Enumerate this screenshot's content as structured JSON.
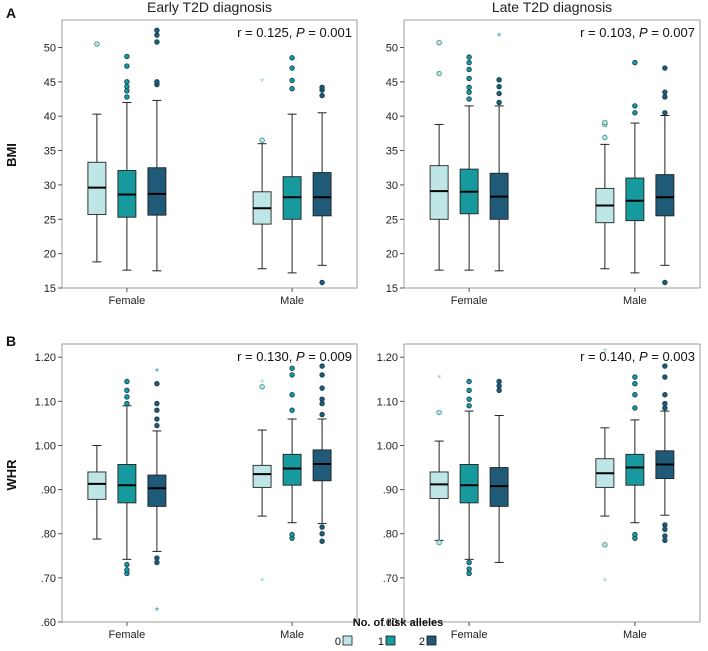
{
  "figure": {
    "legend_title": "No. of risk alleles",
    "legend_items": [
      {
        "label": "0",
        "color": "#bfe6e6"
      },
      {
        "label": "1",
        "color": "#179a9e"
      },
      {
        "label": "2",
        "color": "#1f5b78"
      }
    ],
    "frame_color": "#9c9c9c"
  },
  "chart_data": [
    {
      "type": "boxplot",
      "panel": "A",
      "title": "Early T2D diagnosis",
      "ylabel": "BMI",
      "annotation": {
        "r": "r = 0.125, ",
        "p_label": "P",
        "p_value": " = 0.001"
      },
      "ylim": [
        15,
        54
      ],
      "yticks": [
        15,
        20,
        25,
        30,
        35,
        40,
        45,
        50
      ],
      "ytick_labels": [
        "15",
        "20",
        "25",
        "30",
        "35",
        "40",
        "45",
        "50"
      ],
      "categories": [
        "Female",
        "Male"
      ],
      "groups": [
        {
          "category": "Female",
          "boxes": [
            {
              "alleles": 0,
              "min": 18.8,
              "q1": 25.7,
              "median": 29.6,
              "q3": 33.3,
              "max": 40.3,
              "outliers": [
                50.5
              ]
            },
            {
              "alleles": 1,
              "min": 17.6,
              "q1": 25.3,
              "median": 28.6,
              "q3": 32.1,
              "max": 42.0,
              "outliers": [
                42.8,
                43.7,
                44.3,
                45.0,
                47.3,
                48.7
              ]
            },
            {
              "alleles": 2,
              "min": 17.5,
              "q1": 25.6,
              "median": 28.7,
              "q3": 32.5,
              "max": 42.3,
              "outliers": [
                44.6,
                45.0,
                50.8,
                51.8,
                52.5
              ]
            }
          ]
        },
        {
          "category": "Male",
          "boxes": [
            {
              "alleles": 0,
              "min": 17.8,
              "q1": 24.3,
              "median": 26.6,
              "q3": 29.0,
              "max": 36.0,
              "outliers": [
                36.5
              ],
              "extremes": [
                45.2
              ]
            },
            {
              "alleles": 1,
              "min": 17.2,
              "q1": 25.0,
              "median": 28.2,
              "q3": 31.2,
              "max": 40.3,
              "outliers": [
                44.0,
                45.2,
                47.0,
                48.5
              ]
            },
            {
              "alleles": 2,
              "min": 18.3,
              "q1": 25.5,
              "median": 28.2,
              "q3": 31.8,
              "max": 40.5,
              "outliers": [
                15.8,
                43.0,
                43.8,
                44.2
              ]
            }
          ]
        }
      ]
    },
    {
      "type": "boxplot",
      "panel": "",
      "title": "Late T2D diagnosis",
      "ylabel": "",
      "annotation": {
        "r": "r = 0.103, ",
        "p_label": "P",
        "p_value": " = 0.007"
      },
      "ylim": [
        15,
        54
      ],
      "yticks": [
        15,
        20,
        25,
        30,
        35,
        40,
        45,
        50
      ],
      "ytick_labels": [
        "15",
        "20",
        "25",
        "30",
        "35",
        "40",
        "45",
        "50"
      ],
      "categories": [
        "Female",
        "Male"
      ],
      "groups": [
        {
          "category": "Female",
          "boxes": [
            {
              "alleles": 0,
              "min": 17.6,
              "q1": 25.0,
              "median": 29.1,
              "q3": 32.8,
              "max": 38.8,
              "outliers": [
                46.2,
                50.7
              ]
            },
            {
              "alleles": 1,
              "min": 17.6,
              "q1": 25.8,
              "median": 29.0,
              "q3": 32.3,
              "max": 41.5,
              "outliers": [
                42.5,
                43.5,
                44.2,
                45.5,
                46.8,
                47.8,
                48.6
              ]
            },
            {
              "alleles": 2,
              "min": 17.5,
              "q1": 25.0,
              "median": 28.3,
              "q3": 31.7,
              "max": 41.5,
              "outliers": [
                42.0,
                43.3,
                44.3,
                45.3
              ],
              "extremes": [
                51.8
              ]
            }
          ]
        },
        {
          "category": "Male",
          "boxes": [
            {
              "alleles": 0,
              "min": 17.8,
              "q1": 24.5,
              "median": 27.0,
              "q3": 29.5,
              "max": 35.9,
              "outliers": [
                36.9,
                38.8,
                39.1
              ]
            },
            {
              "alleles": 1,
              "min": 17.2,
              "q1": 24.8,
              "median": 27.7,
              "q3": 31.0,
              "max": 39.0,
              "outliers": [
                40.5,
                41.5,
                47.8
              ]
            },
            {
              "alleles": 2,
              "min": 18.3,
              "q1": 25.5,
              "median": 28.2,
              "q3": 31.5,
              "max": 40.1,
              "outliers": [
                15.8,
                40.5,
                42.8,
                43.5,
                47.0
              ]
            }
          ]
        }
      ]
    },
    {
      "type": "boxplot",
      "panel": "B",
      "title": "",
      "ylabel": "WHR",
      "annotation": {
        "r": "r = 0.130, ",
        "p_label": "P",
        "p_value": " = 0.009"
      },
      "ylim": [
        0.6,
        1.23
      ],
      "yticks": [
        0.6,
        0.7,
        0.8,
        0.9,
        1.0,
        1.1,
        1.2
      ],
      "ytick_labels": [
        ".60",
        ".70",
        ".80",
        ".90",
        "1.00",
        "1.10",
        "1.20"
      ],
      "categories": [
        "Female",
        "Male"
      ],
      "groups": [
        {
          "category": "Female",
          "boxes": [
            {
              "alleles": 0,
              "min": 0.788,
              "q1": 0.878,
              "median": 0.913,
              "q3": 0.94,
              "max": 1.0,
              "outliers": []
            },
            {
              "alleles": 1,
              "min": 0.742,
              "q1": 0.87,
              "median": 0.91,
              "q3": 0.957,
              "max": 1.09,
              "outliers": [
                0.71,
                0.718,
                0.73,
                1.095,
                1.11,
                1.125,
                1.145
              ]
            },
            {
              "alleles": 2,
              "min": 0.76,
              "q1": 0.862,
              "median": 0.903,
              "q3": 0.933,
              "max": 1.033,
              "outliers": [
                0.735,
                0.745,
                1.045,
                1.06,
                1.08,
                1.095,
                1.14
              ],
              "extremes": [
                0.628,
                1.17
              ]
            }
          ]
        },
        {
          "category": "Male",
          "boxes": [
            {
              "alleles": 0,
              "min": 0.84,
              "q1": 0.905,
              "median": 0.935,
              "q3": 0.955,
              "max": 1.035,
              "outliers": [
                1.133
              ],
              "extremes": [
                0.695,
                1.145
              ]
            },
            {
              "alleles": 1,
              "min": 0.825,
              "q1": 0.91,
              "median": 0.948,
              "q3": 0.98,
              "max": 1.06,
              "outliers": [
                0.79,
                0.798,
                1.08,
                1.115,
                1.16,
                1.175
              ]
            },
            {
              "alleles": 2,
              "min": 0.823,
              "q1": 0.92,
              "median": 0.958,
              "q3": 0.99,
              "max": 1.06,
              "outliers": [
                0.783,
                0.8,
                0.815,
                1.07,
                1.095,
                1.105,
                1.13,
                1.16,
                1.18
              ]
            }
          ]
        }
      ]
    },
    {
      "type": "boxplot",
      "panel": "",
      "title": "",
      "ylabel": "",
      "annotation": {
        "r": "r = 0.140, ",
        "p_label": "P",
        "p_value": " = 0.003"
      },
      "ylim": [
        0.6,
        1.23
      ],
      "yticks": [
        0.6,
        0.7,
        0.8,
        0.9,
        1.0,
        1.1,
        1.2
      ],
      "ytick_labels": [
        ".60",
        ".70",
        ".80",
        ".90",
        "1.00",
        "1.10",
        "1.20"
      ],
      "categories": [
        "Female",
        "Male"
      ],
      "groups": [
        {
          "category": "Female",
          "boxes": [
            {
              "alleles": 0,
              "min": 0.785,
              "q1": 0.88,
              "median": 0.912,
              "q3": 0.94,
              "max": 1.01,
              "outliers": [
                0.78,
                1.075
              ],
              "extremes": [
                1.155
              ]
            },
            {
              "alleles": 1,
              "min": 0.742,
              "q1": 0.87,
              "median": 0.91,
              "q3": 0.957,
              "max": 1.078,
              "outliers": [
                0.71,
                0.72,
                0.735,
                1.09,
                1.105,
                1.125,
                1.145
              ]
            },
            {
              "alleles": 2,
              "min": 0.735,
              "q1": 0.862,
              "median": 0.908,
              "q3": 0.95,
              "max": 1.068,
              "outliers": [
                1.125,
                1.135,
                1.145
              ]
            }
          ]
        },
        {
          "category": "Male",
          "boxes": [
            {
              "alleles": 0,
              "min": 0.84,
              "q1": 0.905,
              "median": 0.937,
              "q3": 0.97,
              "max": 1.04,
              "outliers": [
                0.775
              ],
              "extremes": [
                0.695,
                1.215
              ]
            },
            {
              "alleles": 1,
              "min": 0.825,
              "q1": 0.91,
              "median": 0.95,
              "q3": 0.98,
              "max": 1.058,
              "outliers": [
                0.79,
                0.798,
                1.085,
                1.115,
                1.14,
                1.155
              ]
            },
            {
              "alleles": 2,
              "min": 0.842,
              "q1": 0.925,
              "median": 0.957,
              "q3": 0.988,
              "max": 1.078,
              "outliers": [
                0.785,
                0.795,
                0.81,
                0.82,
                1.085,
                1.095,
                1.115,
                1.155,
                1.18
              ]
            }
          ]
        }
      ]
    }
  ]
}
